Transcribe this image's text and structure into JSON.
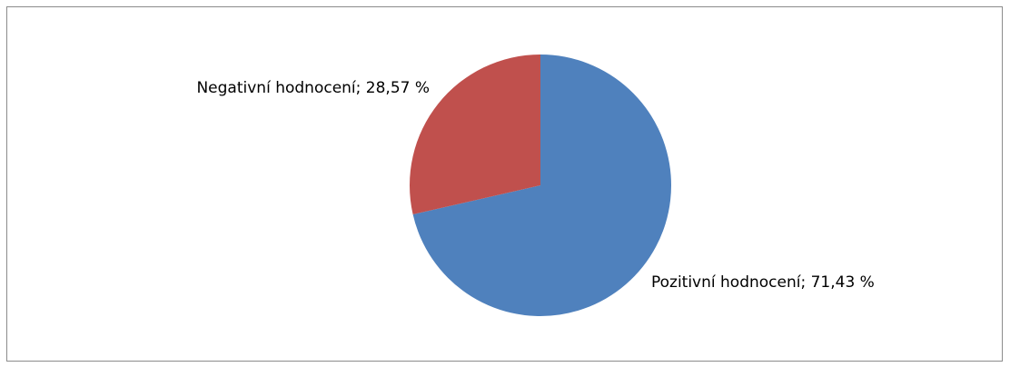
{
  "chart_data": {
    "type": "pie",
    "values": [
      71.43,
      28.57
    ],
    "value_labels": [
      "Pozitivní hodnocení; 71,43 %",
      "Negativní hodnocení; 28,57 %"
    ],
    "colors": [
      "#4f81bd",
      "#c0504d"
    ]
  }
}
